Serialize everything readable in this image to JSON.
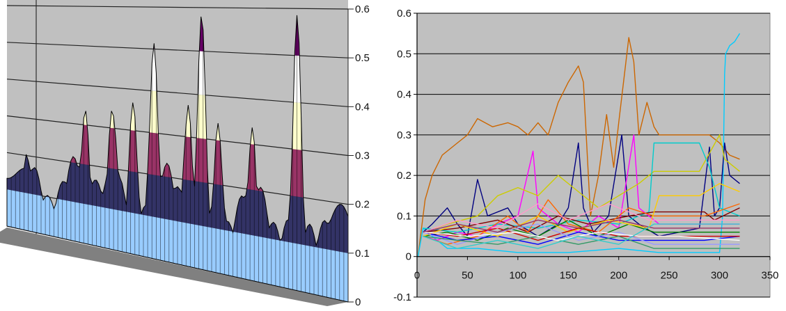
{
  "chart_data": [
    {
      "type": "surface",
      "title": "",
      "zlabel": "",
      "z_ticks": [
        "0",
        "0.1",
        "0.2",
        "0.3",
        "0.4",
        "0.5",
        "0.6"
      ],
      "z_range": [
        0,
        0.6
      ],
      "bands": [
        {
          "range": [
            0,
            0.1
          ],
          "color": "#99ccff"
        },
        {
          "range": [
            0.1,
            0.2
          ],
          "color": "#333366"
        },
        {
          "range": [
            0.2,
            0.3
          ],
          "color": "#993366"
        },
        {
          "range": [
            0.3,
            0.4
          ],
          "color": "#ffffcc"
        },
        {
          "range": [
            0.4,
            0.5
          ],
          "color": "#ffffff"
        },
        {
          "range": [
            0.5,
            0.6
          ],
          "color": "#660066"
        }
      ],
      "peaks": [
        {
          "x": 0.57,
          "value": 0.55
        },
        {
          "x": 0.85,
          "value": 0.55
        },
        {
          "x": 0.43,
          "value": 0.48
        },
        {
          "x": 0.53,
          "value": 0.35
        },
        {
          "x": 0.37,
          "value": 0.33
        },
        {
          "x": 0.23,
          "value": 0.3
        },
        {
          "x": 0.31,
          "value": 0.33
        },
        {
          "x": 0.72,
          "value": 0.3
        },
        {
          "x": 0.62,
          "value": 0.31
        }
      ],
      "wall_color": "#c0c0c0",
      "grid": true
    },
    {
      "type": "line",
      "title": "",
      "xlabel": "",
      "ylabel": "",
      "xlim": [
        0,
        350
      ],
      "ylim": [
        -0.1,
        0.6
      ],
      "x_ticks": [
        "0",
        "50",
        "100",
        "150",
        "200",
        "250",
        "300",
        "350"
      ],
      "y_ticks": [
        "-0.1",
        "0",
        "0.1",
        "0.2",
        "0.3",
        "0.4",
        "0.5",
        "0.6"
      ],
      "plot_bg": "#c0c0c0",
      "grid": true,
      "legend": "none",
      "series_note_count": 34,
      "series": [
        {
          "color": "#cc6600",
          "points": [
            [
              1,
              0
            ],
            [
              8,
              0.14
            ],
            [
              15,
              0.2
            ],
            [
              25,
              0.25
            ],
            [
              40,
              0.28
            ],
            [
              50,
              0.3
            ],
            [
              60,
              0.34
            ],
            [
              75,
              0.32
            ],
            [
              90,
              0.33
            ],
            [
              100,
              0.32
            ],
            [
              110,
              0.3
            ],
            [
              120,
              0.33
            ],
            [
              130,
              0.3
            ],
            [
              140,
              0.38
            ],
            [
              150,
              0.43
            ],
            [
              160,
              0.47
            ],
            [
              165,
              0.43
            ],
            [
              172,
              0.1
            ],
            [
              180,
              0.2
            ],
            [
              188,
              0.35
            ],
            [
              195,
              0.22
            ],
            [
              200,
              0.33
            ],
            [
              210,
              0.54
            ],
            [
              215,
              0.48
            ],
            [
              220,
              0.3
            ],
            [
              228,
              0.38
            ],
            [
              235,
              0.32
            ],
            [
              240,
              0.3
            ],
            [
              280,
              0.3
            ],
            [
              290,
              0.3
            ],
            [
              300,
              0.28
            ],
            [
              310,
              0.25
            ],
            [
              320,
              0.24
            ]
          ]
        },
        {
          "color": "#00ccff",
          "points": [
            [
              1,
              0
            ],
            [
              6,
              0.07
            ],
            [
              15,
              0.05
            ],
            [
              30,
              0.02
            ],
            [
              60,
              0.02
            ],
            [
              100,
              0.01
            ],
            [
              150,
              0.01
            ],
            [
              200,
              0.02
            ],
            [
              240,
              0.01
            ],
            [
              300,
              0.01
            ],
            [
              303,
              0.1
            ],
            [
              305,
              0.45
            ],
            [
              306,
              0.5
            ],
            [
              310,
              0.52
            ],
            [
              315,
              0.53
            ],
            [
              320,
              0.55
            ]
          ]
        },
        {
          "color": "#000080",
          "points": [
            [
              6,
              0.06
            ],
            [
              15,
              0.08
            ],
            [
              30,
              0.12
            ],
            [
              40,
              0.08
            ],
            [
              50,
              0.05
            ],
            [
              60,
              0.19
            ],
            [
              70,
              0.1
            ],
            [
              90,
              0.12
            ],
            [
              100,
              0.08
            ],
            [
              120,
              0.05
            ],
            [
              140,
              0.08
            ],
            [
              150,
              0.12
            ],
            [
              160,
              0.28
            ],
            [
              165,
              0.12
            ],
            [
              175,
              0.06
            ],
            [
              190,
              0.1
            ],
            [
              203,
              0.3
            ],
            [
              210,
              0.1
            ],
            [
              220,
              0.08
            ],
            [
              240,
              0.05
            ],
            [
              280,
              0.07
            ],
            [
              290,
              0.27
            ],
            [
              295,
              0.1
            ],
            [
              300,
              0.12
            ],
            [
              305,
              0.28
            ],
            [
              310,
              0.2
            ],
            [
              320,
              0.18
            ]
          ]
        },
        {
          "color": "#ff00ff",
          "points": [
            [
              6,
              0.05
            ],
            [
              20,
              0.04
            ],
            [
              40,
              0.06
            ],
            [
              60,
              0.05
            ],
            [
              80,
              0.08
            ],
            [
              100,
              0.1
            ],
            [
              115,
              0.26
            ],
            [
              120,
              0.12
            ],
            [
              140,
              0.08
            ],
            [
              160,
              0.06
            ],
            [
              180,
              0.1
            ],
            [
              200,
              0.07
            ],
            [
              215,
              0.3
            ],
            [
              220,
              0.12
            ],
            [
              240,
              0.08
            ],
            [
              300,
              0.08
            ],
            [
              320,
              0.08
            ]
          ]
        },
        {
          "color": "#cccc00",
          "points": [
            [
              6,
              0.06
            ],
            [
              30,
              0.08
            ],
            [
              60,
              0.1
            ],
            [
              80,
              0.15
            ],
            [
              100,
              0.17
            ],
            [
              120,
              0.15
            ],
            [
              140,
              0.2
            ],
            [
              160,
              0.16
            ],
            [
              180,
              0.12
            ],
            [
              200,
              0.15
            ],
            [
              220,
              0.18
            ],
            [
              235,
              0.21
            ],
            [
              280,
              0.21
            ],
            [
              300,
              0.3
            ],
            [
              305,
              0.24
            ],
            [
              320,
              0.21
            ]
          ]
        },
        {
          "color": "#00cccc",
          "points": [
            [
              6,
              0.07
            ],
            [
              40,
              0.06
            ],
            [
              80,
              0.08
            ],
            [
              120,
              0.07
            ],
            [
              160,
              0.09
            ],
            [
              200,
              0.08
            ],
            [
              230,
              0.11
            ],
            [
              235,
              0.28
            ],
            [
              280,
              0.28
            ],
            [
              290,
              0.22
            ],
            [
              300,
              0.12
            ],
            [
              320,
              0.1
            ]
          ]
        },
        {
          "color": "#800000",
          "points": [
            [
              6,
              0.06
            ],
            [
              40,
              0.07
            ],
            [
              80,
              0.09
            ],
            [
              110,
              0.06
            ],
            [
              140,
              0.1
            ],
            [
              170,
              0.08
            ],
            [
              210,
              0.1
            ],
            [
              235,
              0.11
            ],
            [
              285,
              0.11
            ],
            [
              295,
              0.09
            ],
            [
              320,
              0.12
            ]
          ]
        },
        {
          "color": "#ff6600",
          "points": [
            [
              6,
              0.05
            ],
            [
              30,
              0.03
            ],
            [
              60,
              0.05
            ],
            [
              90,
              0.1
            ],
            [
              110,
              0.06
            ],
            [
              130,
              0.14
            ],
            [
              150,
              0.08
            ],
            [
              180,
              0.06
            ],
            [
              210,
              0.12
            ],
            [
              235,
              0.1
            ],
            [
              285,
              0.1
            ],
            [
              320,
              0.13
            ]
          ]
        },
        {
          "color": "#008000",
          "points": [
            [
              6,
              0.05
            ],
            [
              30,
              0.06
            ],
            [
              60,
              0.04
            ],
            [
              90,
              0.07
            ],
            [
              120,
              0.05
            ],
            [
              150,
              0.09
            ],
            [
              180,
              0.05
            ],
            [
              210,
              0.08
            ],
            [
              235,
              0.06
            ],
            [
              285,
              0.06
            ],
            [
              320,
              0.06
            ]
          ]
        },
        {
          "color": "#0000ff",
          "points": [
            [
              6,
              0.06
            ],
            [
              40,
              0.04
            ],
            [
              80,
              0.05
            ],
            [
              120,
              0.03
            ],
            [
              160,
              0.06
            ],
            [
              200,
              0.04
            ],
            [
              235,
              0.04
            ],
            [
              285,
              0.04
            ],
            [
              320,
              0.05
            ]
          ]
        },
        {
          "color": "#ffcc00",
          "points": [
            [
              6,
              0.05
            ],
            [
              40,
              0.08
            ],
            [
              80,
              0.05
            ],
            [
              120,
              0.1
            ],
            [
              150,
              0.06
            ],
            [
              190,
              0.09
            ],
            [
              230,
              0.07
            ],
            [
              240,
              0.15
            ],
            [
              280,
              0.15
            ],
            [
              300,
              0.18
            ],
            [
              320,
              0.16
            ]
          ]
        },
        {
          "color": "#cc0000",
          "points": [
            [
              6,
              0.06
            ],
            [
              40,
              0.05
            ],
            [
              80,
              0.07
            ],
            [
              120,
              0.04
            ],
            [
              160,
              0.07
            ],
            [
              200,
              0.05
            ],
            [
              235,
              0.05
            ],
            [
              285,
              0.05
            ],
            [
              320,
              0.05
            ]
          ]
        },
        {
          "color": "#9999ff",
          "points": [
            [
              6,
              0.06
            ],
            [
              40,
              0.03
            ],
            [
              80,
              0.06
            ],
            [
              120,
              0.08
            ],
            [
              160,
              0.04
            ],
            [
              200,
              0.06
            ],
            [
              235,
              0.03
            ],
            [
              285,
              0.03
            ],
            [
              320,
              0.03
            ]
          ]
        },
        {
          "color": "#ff99cc",
          "points": [
            [
              6,
              0.06
            ],
            [
              40,
              0.09
            ],
            [
              80,
              0.07
            ],
            [
              120,
              0.13
            ],
            [
              150,
              0.09
            ],
            [
              190,
              0.13
            ],
            [
              230,
              0.09
            ],
            [
              285,
              0.09
            ],
            [
              320,
              0.09
            ]
          ]
        },
        {
          "color": "#339966",
          "points": [
            [
              6,
              0.05
            ],
            [
              40,
              0.04
            ],
            [
              80,
              0.03
            ],
            [
              120,
              0.05
            ],
            [
              160,
              0.03
            ],
            [
              200,
              0.05
            ],
            [
              235,
              0.02
            ],
            [
              285,
              0.02
            ],
            [
              320,
              0.02
            ]
          ]
        },
        {
          "color": "#ffffff",
          "points": [
            [
              6,
              0.06
            ],
            [
              50,
              0.05
            ],
            [
              100,
              0.06
            ],
            [
              140,
              0.04
            ],
            [
              180,
              0.06
            ],
            [
              220,
              0.05
            ],
            [
              260,
              0.05
            ],
            [
              320,
              0.04
            ]
          ]
        },
        {
          "color": "#993366",
          "points": [
            [
              6,
              0.06
            ],
            [
              40,
              0.08
            ],
            [
              80,
              0.06
            ],
            [
              120,
              0.09
            ],
            [
              160,
              0.07
            ],
            [
              200,
              0.09
            ],
            [
              235,
              0.07
            ],
            [
              285,
              0.07
            ],
            [
              320,
              0.07
            ]
          ]
        },
        {
          "color": "#33cccc",
          "points": [
            [
              6,
              0.05
            ],
            [
              40,
              0.02
            ],
            [
              80,
              0.04
            ],
            [
              120,
              0.02
            ],
            [
              160,
              0.05
            ],
            [
              200,
              0.03
            ],
            [
              235,
              0.08
            ],
            [
              285,
              0.08
            ],
            [
              320,
              0.08
            ]
          ]
        }
      ]
    }
  ]
}
